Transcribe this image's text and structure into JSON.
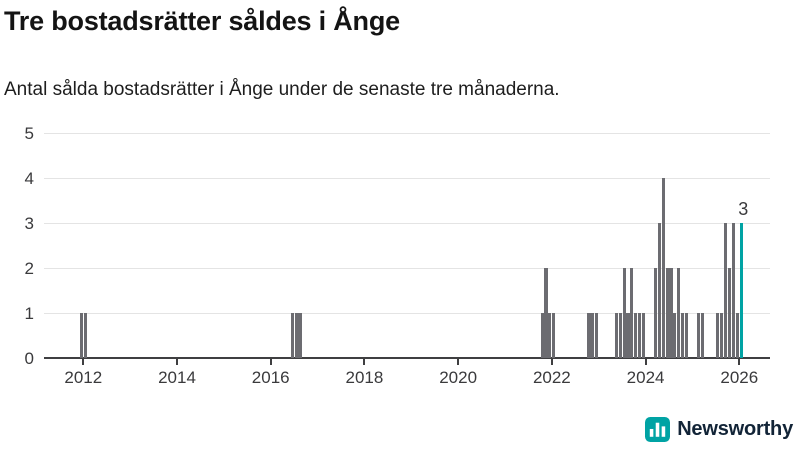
{
  "chart_data": {
    "type": "bar",
    "title": "Tre bostadsrätter såldes i Ånge",
    "subtitle": "Antal sålda bostadsrätter i Ånge under de senaste tre månaderna.",
    "xlabel": "",
    "ylabel": "",
    "ylim": [
      0,
      5
    ],
    "y_ticks": [
      0,
      1,
      2,
      3,
      4,
      5
    ],
    "x_tick_labels": [
      "2012",
      "2014",
      "2016",
      "2018",
      "2020",
      "2022",
      "2024",
      "2026"
    ],
    "grid": "horizontal-light",
    "legend": "none",
    "bar_color": "#6c6c71",
    "highlight_color": "#00a3a4",
    "series": [
      {
        "month": "2011-12",
        "value": 1
      },
      {
        "month": "2012-01",
        "value": 1
      },
      {
        "month": "2016-06",
        "value": 1
      },
      {
        "month": "2016-07",
        "value": 1
      },
      {
        "month": "2016-08",
        "value": 1
      },
      {
        "month": "2021-10",
        "value": 1
      },
      {
        "month": "2021-11",
        "value": 2
      },
      {
        "month": "2021-12",
        "value": 1
      },
      {
        "month": "2022-01",
        "value": 1
      },
      {
        "month": "2022-10",
        "value": 1
      },
      {
        "month": "2022-11",
        "value": 1
      },
      {
        "month": "2022-12",
        "value": 1
      },
      {
        "month": "2023-05",
        "value": 1
      },
      {
        "month": "2023-06",
        "value": 1
      },
      {
        "month": "2023-07",
        "value": 2
      },
      {
        "month": "2023-08",
        "value": 1
      },
      {
        "month": "2023-09",
        "value": 2
      },
      {
        "month": "2023-10",
        "value": 1
      },
      {
        "month": "2023-11",
        "value": 1
      },
      {
        "month": "2023-12",
        "value": 1
      },
      {
        "month": "2024-03",
        "value": 2
      },
      {
        "month": "2024-04",
        "value": 3
      },
      {
        "month": "2024-05",
        "value": 4
      },
      {
        "month": "2024-06",
        "value": 2
      },
      {
        "month": "2024-07",
        "value": 2
      },
      {
        "month": "2024-08",
        "value": 1
      },
      {
        "month": "2024-09",
        "value": 2
      },
      {
        "month": "2024-10",
        "value": 1
      },
      {
        "month": "2024-11",
        "value": 1
      },
      {
        "month": "2025-02",
        "value": 1
      },
      {
        "month": "2025-03",
        "value": 1
      },
      {
        "month": "2025-07",
        "value": 1
      },
      {
        "month": "2025-08",
        "value": 1
      },
      {
        "month": "2025-09",
        "value": 3
      },
      {
        "month": "2025-10",
        "value": 2
      },
      {
        "month": "2025-11",
        "value": 3
      },
      {
        "month": "2025-12",
        "value": 1
      },
      {
        "month": "2026-01",
        "value": 3,
        "highlight": true
      }
    ],
    "annotation": {
      "text": "3",
      "month": "2026-01",
      "value": 3
    }
  },
  "logo": {
    "brand": "Newsworthy"
  }
}
